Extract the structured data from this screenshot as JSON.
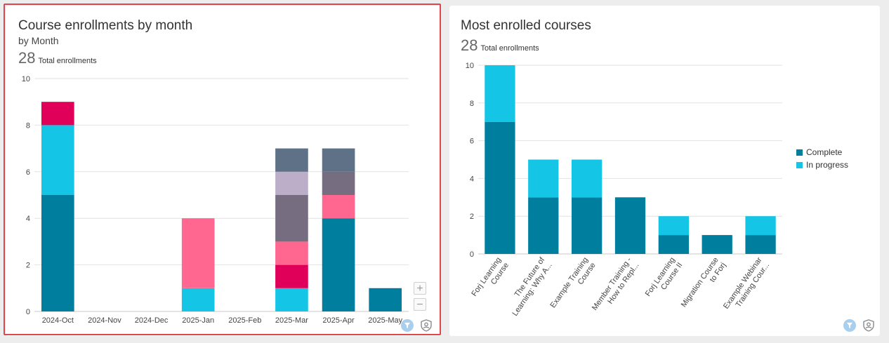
{
  "left_panel": {
    "title": "Course enrollments by month",
    "subtitle": "by Month",
    "total_count": "28",
    "total_label": "Total enrollments",
    "zoom_in": "+",
    "zoom_out": "−"
  },
  "right_panel": {
    "title": "Most enrolled courses",
    "total_count": "28",
    "total_label": "Total enrollments",
    "legend": [
      {
        "label": "Complete",
        "color": "#007e9e"
      },
      {
        "label": "In progress",
        "color": "#14c5e6"
      }
    ]
  },
  "chart_data": [
    {
      "type": "bar",
      "stacked": true,
      "title": "Course enrollments by month",
      "subtitle": "by Month",
      "categories": [
        "2024-Oct",
        "2024-Nov",
        "2024-Dec",
        "2025-Jan",
        "2025-Feb",
        "2025-Mar",
        "2025-Apr",
        "2025-May"
      ],
      "ylim": [
        0,
        10
      ],
      "yticks": [
        0,
        2,
        4,
        6,
        8,
        10
      ],
      "grid": true,
      "series": [
        {
          "color": "#007e9e",
          "values": [
            5,
            0,
            0,
            0,
            0,
            0,
            4,
            1
          ]
        },
        {
          "color": "#14c5e6",
          "values": [
            3,
            0,
            0,
            1,
            0,
            1,
            0,
            0
          ]
        },
        {
          "color": "#e0005a",
          "values": [
            1,
            0,
            0,
            0,
            0,
            1,
            0,
            0
          ]
        },
        {
          "color": "#ff6690",
          "values": [
            0,
            0,
            0,
            3,
            0,
            1,
            1,
            0
          ]
        },
        {
          "color": "#766e80",
          "values": [
            0,
            0,
            0,
            0,
            0,
            2,
            1,
            0
          ]
        },
        {
          "color": "#bcaec8",
          "values": [
            0,
            0,
            0,
            0,
            0,
            1,
            0,
            0
          ]
        },
        {
          "color": "#5f7186",
          "values": [
            0,
            0,
            0,
            0,
            0,
            1,
            1,
            0
          ]
        }
      ]
    },
    {
      "type": "bar",
      "stacked": true,
      "title": "Most enrolled courses",
      "categories": [
        [
          "Forj Learning",
          "Course"
        ],
        [
          "The Future of",
          "Learning: Why A..."
        ],
        [
          "Example Training",
          "Course"
        ],
        [
          "Member Training -",
          "How to Repl..."
        ],
        [
          "Forj Learning",
          "Course II"
        ],
        [
          "Migration Course",
          "to Forj"
        ],
        [
          "Example Webinar",
          "Training Cour..."
        ]
      ],
      "ylim": [
        0,
        10
      ],
      "yticks": [
        0,
        2,
        4,
        6,
        8,
        10
      ],
      "grid": true,
      "legend_position": "right",
      "series": [
        {
          "name": "Complete",
          "color": "#007e9e",
          "values": [
            7,
            3,
            3,
            3,
            1,
            1,
            1
          ]
        },
        {
          "name": "In progress",
          "color": "#14c5e6",
          "values": [
            3,
            2,
            2,
            0,
            1,
            0,
            1
          ]
        }
      ]
    }
  ]
}
